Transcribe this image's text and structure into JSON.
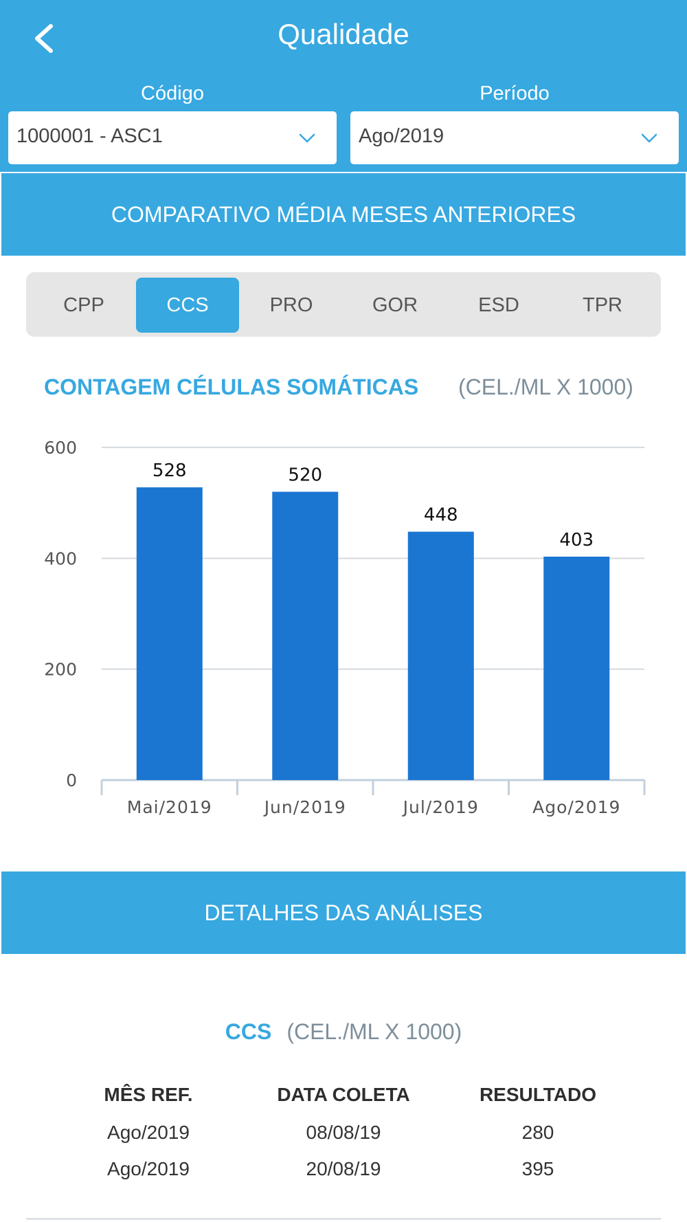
{
  "header": {
    "title": "Qualidade",
    "codigo_label": "Código",
    "codigo_value": "1000001 - ASC1",
    "periodo_label": "Período",
    "periodo_value": "Ago/2019"
  },
  "comparativo": {
    "section_title": "COMPARATIVO MÉDIA MESES ANTERIORES",
    "tabs": [
      {
        "label": "CPP",
        "active": false
      },
      {
        "label": "CCS",
        "active": true
      },
      {
        "label": "PRO",
        "active": false
      },
      {
        "label": "GOR",
        "active": false
      },
      {
        "label": "ESD",
        "active": false
      },
      {
        "label": "TPR",
        "active": false
      }
    ],
    "chart_title": "CONTAGEM CÉLULAS SOMÁTICAS",
    "chart_unit": "(CEL./ML X 1000)"
  },
  "chart_data": {
    "type": "bar",
    "categories": [
      "Mai/2019",
      "Jun/2019",
      "Jul/2019",
      "Ago/2019"
    ],
    "values": [
      528,
      520,
      448,
      403
    ],
    "data_labels": [
      "528",
      "520",
      "448",
      "403"
    ],
    "yticks": [
      0,
      200,
      400,
      600
    ],
    "ylim": [
      0,
      600
    ],
    "grid": true,
    "bar_color": "#1b76d2",
    "title": "CONTAGEM CÉLULAS SOMÁTICAS",
    "xlabel": "",
    "ylabel": ""
  },
  "detalhes": {
    "section_title": "DETALHES DAS ANÁLISES",
    "heading_abbr": "CCS",
    "heading_unit": "(CEL./ML X 1000)",
    "columns": [
      "MÊS REF.",
      "DATA COLETA",
      "RESULTADO"
    ],
    "rows": [
      [
        "Ago/2019",
        "08/08/19",
        "280"
      ],
      [
        "Ago/2019",
        "20/08/19",
        "395"
      ]
    ]
  },
  "colors": {
    "primary": "#37a8e0",
    "bar": "#1b76d2",
    "muted": "#7d8e9a"
  },
  "icons": {
    "back": "chevron-left-icon",
    "dropdown": "chevron-down-icon"
  }
}
